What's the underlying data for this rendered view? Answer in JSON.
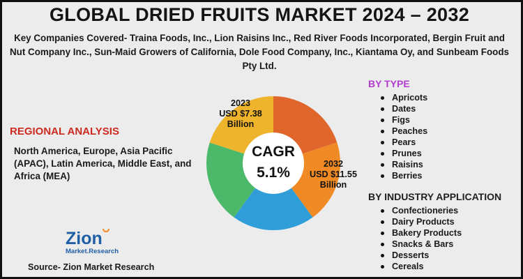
{
  "title": "GLOBAL DRIED FRUITS MARKET 2024 – 2032",
  "companies": "Key Companies Covered- Traina Foods, Inc., Lion Raisins Inc., Red River Foods Incorporated, Bergin Fruit and Nut Company Inc., Sun-Maid Growers of California, Dole Food Company, Inc., Kiantama Oy, and Sunbeam Foods Pty Ltd.",
  "regional": {
    "heading": "REGIONAL ANALYSIS",
    "body": "North America, Europe, Asia Pacific (APAC), Latin America, Middle East, and Africa (MEA)"
  },
  "by_type": {
    "heading": "BY TYPE",
    "items": [
      "Apricots",
      "Dates",
      "Figs",
      "Peaches",
      "Pears",
      "Prunes",
      "Raisins",
      "Berries"
    ]
  },
  "by_application": {
    "heading": "BY INDUSTRY APPLICATION",
    "items": [
      "Confectioneries",
      "Dairy Products",
      "Bakery Products",
      "Snacks & Bars",
      "Desserts",
      "Cereals"
    ]
  },
  "chart_data": {
    "type": "pie",
    "center_label": "CAGR",
    "center_value": "5.1%",
    "slices": [
      {
        "value": 20,
        "color": "#e0662c"
      },
      {
        "value": 20,
        "color": "#f08a25"
      },
      {
        "value": 20,
        "color": "#2f9ed8"
      },
      {
        "value": 20,
        "color": "#4cb96a"
      },
      {
        "value": 20,
        "color": "#eeb52c"
      }
    ],
    "annotations": [
      {
        "year": "2023",
        "value": "USD $7.38",
        "unit": "Billion"
      },
      {
        "year": "2032",
        "value": "USD $11.55",
        "unit": "Billion"
      }
    ]
  },
  "logo": {
    "line1": "Zion",
    "line2": "Market.Research"
  },
  "source": "Source- Zion Market Research",
  "colors": {
    "region_heading": "#cc2a1f",
    "type_heading": "#b23bd0",
    "logo_blue": "#1f5fa8",
    "logo_orange": "#f08a25"
  }
}
